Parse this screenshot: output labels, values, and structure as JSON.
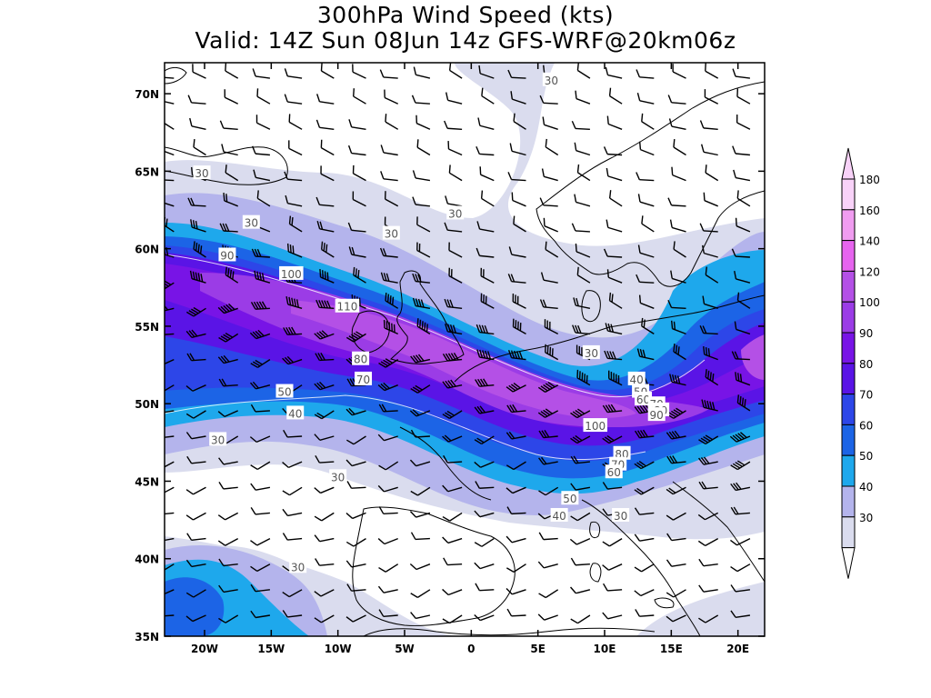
{
  "title_line1": "300hPa Wind Speed (kts)",
  "title_line2": "Valid: 14Z Sun 08Jun 14z GFS-WRF@20km06z",
  "lat_labels": [
    "70N",
    "65N",
    "60N",
    "55N",
    "50N",
    "45N",
    "40N",
    "35N"
  ],
  "lat_values": [
    70,
    65,
    60,
    55,
    50,
    45,
    40,
    35
  ],
  "lon_labels": [
    "20W",
    "15W",
    "10W",
    "5W",
    "0",
    "5E",
    "10E",
    "15E",
    "20E"
  ],
  "lon_values": [
    -20,
    -15,
    -10,
    -5,
    0,
    5,
    10,
    15,
    20
  ],
  "domain": {
    "lon_min": -23,
    "lon_max": 22,
    "lat_min": 35,
    "lat_max": 72
  },
  "colorbar": {
    "labels": [
      "30",
      "40",
      "50",
      "60",
      "70",
      "80",
      "90",
      "100",
      "120",
      "140",
      "160",
      "180"
    ],
    "colors": [
      "#dadcee",
      "#b4b4ec",
      "#1ea8ec",
      "#1c64e6",
      "#2d46e8",
      "#5a14e6",
      "#7814e6",
      "#9b3ce6",
      "#b450e6",
      "#e664ee",
      "#f09cf0",
      "#f8d2f8"
    ]
  },
  "contour_labels": [
    {
      "text": "30",
      "lon": 6,
      "lat": 70.9
    },
    {
      "text": "30",
      "lon": -20.2,
      "lat": 64.9
    },
    {
      "text": "30",
      "lon": -16.5,
      "lat": 61.7
    },
    {
      "text": "30",
      "lon": -6,
      "lat": 61.0
    },
    {
      "text": "30",
      "lon": -1.2,
      "lat": 62.3
    },
    {
      "text": "30",
      "lon": 9,
      "lat": 53.3
    },
    {
      "text": "30",
      "lon": -19,
      "lat": 47.7
    },
    {
      "text": "30",
      "lon": -10,
      "lat": 45.3
    },
    {
      "text": "30",
      "lon": 11.2,
      "lat": 42.8
    },
    {
      "text": "30",
      "lon": -13,
      "lat": 39.5
    },
    {
      "text": "90",
      "lon": -18.3,
      "lat": 59.6
    },
    {
      "text": "100",
      "lon": -13.5,
      "lat": 58.4
    },
    {
      "text": "110",
      "lon": -9.3,
      "lat": 56.3
    },
    {
      "text": "80",
      "lon": -8.3,
      "lat": 52.9
    },
    {
      "text": "70",
      "lon": -8.1,
      "lat": 51.6
    },
    {
      "text": "50",
      "lon": -14,
      "lat": 50.8
    },
    {
      "text": "40",
      "lon": -13.2,
      "lat": 49.4
    },
    {
      "text": "40",
      "lon": 12.4,
      "lat": 51.6
    },
    {
      "text": "50",
      "lon": 12.7,
      "lat": 50.8
    },
    {
      "text": "60",
      "lon": 12.9,
      "lat": 50.3
    },
    {
      "text": "70",
      "lon": 13.9,
      "lat": 50.0
    },
    {
      "text": "80",
      "lon": 14.2,
      "lat": 49.6
    },
    {
      "text": "90",
      "lon": 13.9,
      "lat": 49.3
    },
    {
      "text": "100",
      "lon": 9.3,
      "lat": 48.6
    },
    {
      "text": "80",
      "lon": 11.3,
      "lat": 46.8
    },
    {
      "text": "70",
      "lon": 11,
      "lat": 46.1
    },
    {
      "text": "60",
      "lon": 10.7,
      "lat": 45.6
    },
    {
      "text": "50",
      "lon": 7.4,
      "lat": 43.9
    },
    {
      "text": "40",
      "lon": 6.6,
      "lat": 42.8
    }
  ]
}
